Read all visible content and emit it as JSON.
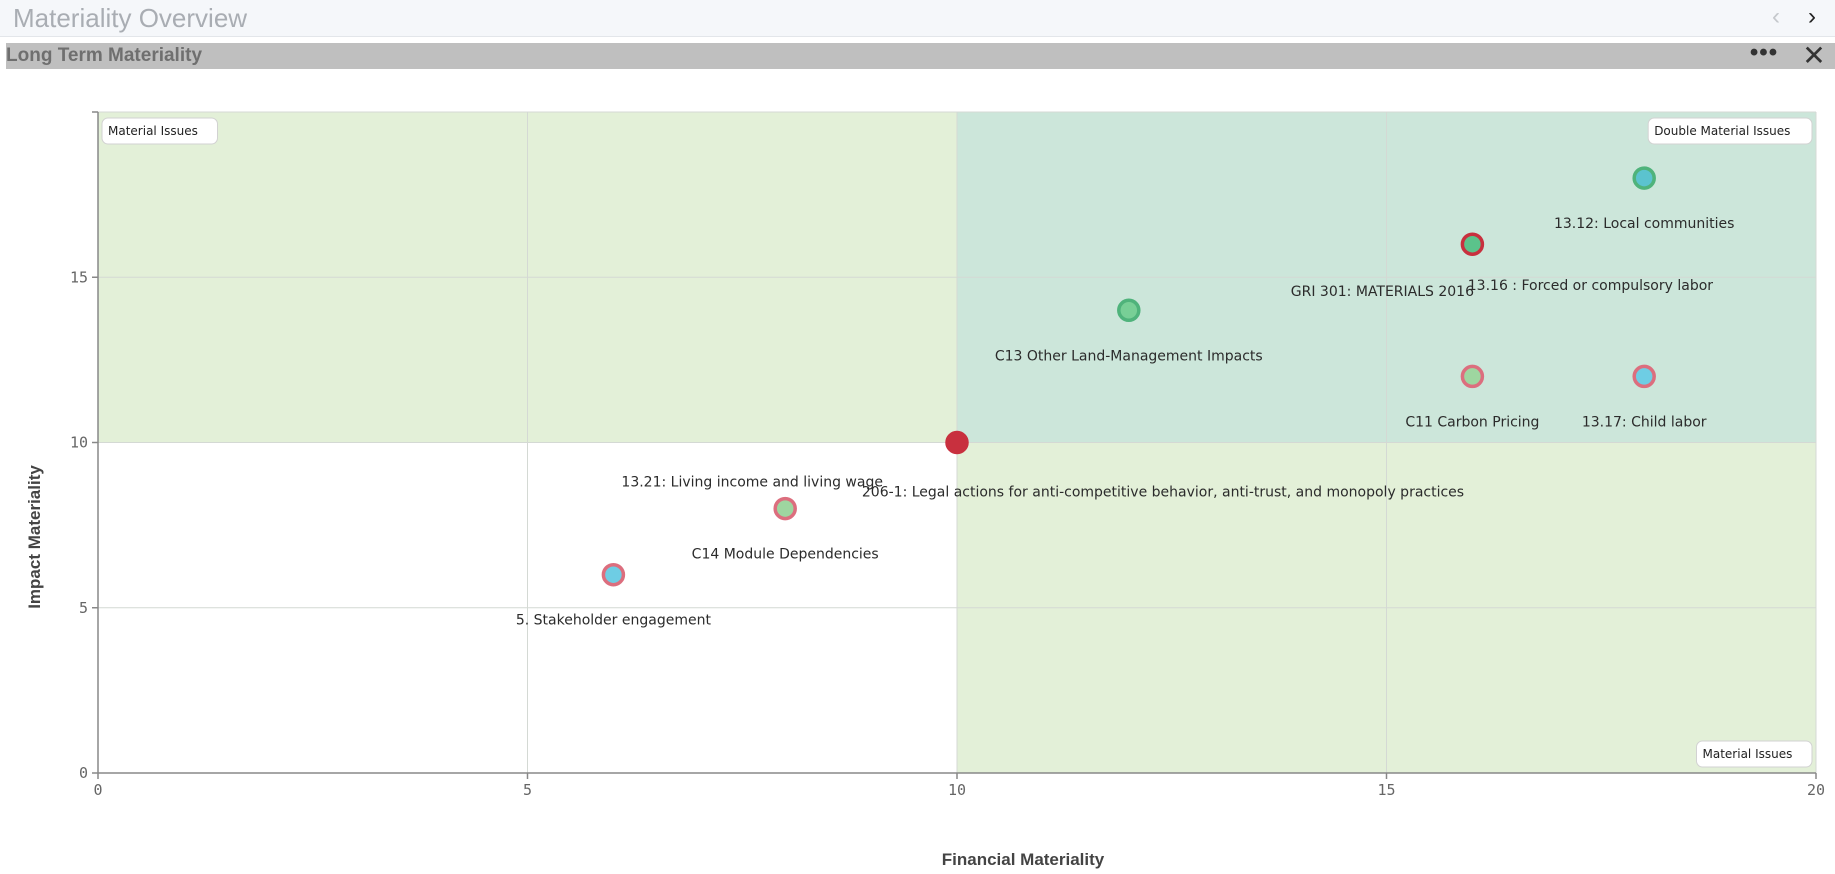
{
  "sheet": {
    "title": "Materiality Overview",
    "prev_icon": "chevron-left-icon",
    "next_icon": "chevron-right-icon"
  },
  "panel": {
    "title": "Long Term Materiality",
    "more_label": "•••",
    "close_label": "✕"
  },
  "colors": {
    "quadrant_light_green": "#e3f0d8",
    "quadrant_teal": "#cce6da",
    "point_fill_teal": "#5bc3cf",
    "point_fill_green": "#78cf96",
    "point_fill_light_green": "#9ed6a0",
    "point_fill_blue": "#6ecde4",
    "point_stroke_pink": "#dc6e7e",
    "point_stroke_red": "#c8303e",
    "point_stroke_green": "#4fb37b"
  },
  "chart_data": {
    "type": "scatter",
    "xlabel": "Financial Materiality",
    "ylabel": "Impact Materiality",
    "xlim": [
      0,
      20
    ],
    "ylim": [
      0,
      20
    ],
    "x_ticks": [
      "0",
      "5",
      "10",
      "15",
      "20"
    ],
    "y_ticks": [
      "0",
      "5",
      "10",
      "15"
    ],
    "grid": true,
    "quadrants": [
      {
        "x": [
          0,
          10
        ],
        "y": [
          10,
          20
        ],
        "color": "#e3f0d8",
        "label": "Material Issues",
        "label_corner": "top-left"
      },
      {
        "x": [
          10,
          20
        ],
        "y": [
          10,
          20
        ],
        "color": "#cce6da",
        "label": "Double Material Issues",
        "label_corner": "top-right"
      },
      {
        "x": [
          10,
          20
        ],
        "y": [
          0,
          10
        ],
        "color": "#e3f0d8",
        "label": "Material Issues",
        "label_corner": "bottom-right"
      }
    ],
    "points": [
      {
        "label": "13.12: Local communities",
        "x": 18,
        "y": 18,
        "fill": "#5bc3cf",
        "stroke": "#4fb37b"
      },
      {
        "label": "13.16 : Forced or compulsory labor",
        "x": 16,
        "y": 16,
        "fill": "#5bc38b",
        "stroke": "#c8303e"
      },
      {
        "label": "GRI 301: MATERIALS 2016",
        "x": 16,
        "y": 16,
        "fill": "#5bc38b",
        "stroke": "#c8303e"
      },
      {
        "label": "C13 Other Land-Management Impacts",
        "x": 12,
        "y": 14,
        "fill": "#78cf96",
        "stroke": "#4fb37b"
      },
      {
        "label": "C11 Carbon Pricing",
        "x": 16,
        "y": 12,
        "fill": "#9ed6a0",
        "stroke": "#dc6e7e"
      },
      {
        "label": "13.17: Child labor",
        "x": 18,
        "y": 12,
        "fill": "#6ecde4",
        "stroke": "#dc6e7e"
      },
      {
        "label": "206-1: Legal actions for anti-competitive behavior, anti-trust, and monopoly practices",
        "x": 10,
        "y": 10,
        "fill": "#c8303e",
        "stroke": "#c8303e"
      },
      {
        "label": "13.21: Living income and living wage",
        "x": 8,
        "y": 8,
        "fill": "#9ed6a0",
        "stroke": "#dc6e7e"
      },
      {
        "label": "C14 Module Dependencies",
        "x": 8,
        "y": 8,
        "fill": "#9ed6a0",
        "stroke": "#dc6e7e"
      },
      {
        "label": "5. Stakeholder engagement",
        "x": 6,
        "y": 6,
        "fill": "#6ecde4",
        "stroke": "#dc6e7e"
      }
    ]
  }
}
